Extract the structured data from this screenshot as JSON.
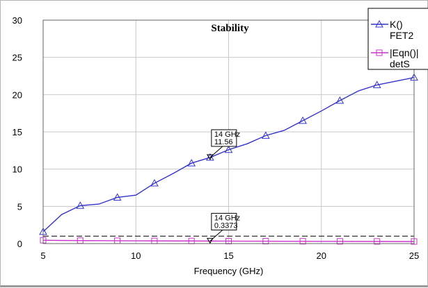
{
  "chart_data": {
    "type": "line",
    "title": "Stability",
    "xlabel": "Frequency (GHz)",
    "ylabel": "",
    "xlim": [
      5,
      25
    ],
    "ylim": [
      0,
      30
    ],
    "xticks": [
      5,
      10,
      15,
      20,
      25
    ],
    "yticks": [
      0,
      5,
      10,
      15,
      20,
      25,
      30
    ],
    "grid": true,
    "legend_position": "top-right",
    "series": [
      {
        "name": "K()",
        "sub": "FET2",
        "color": "#3333cc",
        "marker": "triangle",
        "x": [
          5,
          6,
          7,
          8,
          9,
          10,
          11,
          12,
          13,
          14,
          15,
          16,
          17,
          18,
          19,
          20,
          21,
          22,
          23,
          24,
          25
        ],
        "y": [
          1.6,
          3.9,
          5.1,
          5.3,
          6.2,
          6.5,
          8.1,
          9.4,
          10.8,
          11.56,
          12.6,
          13.4,
          14.5,
          15.2,
          16.5,
          17.8,
          19.2,
          20.5,
          21.3,
          21.8,
          22.3
        ],
        "marker_x": [
          5,
          7,
          9,
          11,
          13,
          14,
          15,
          17,
          19,
          21,
          23,
          25
        ]
      },
      {
        "name": "|Eqn()|",
        "sub": "detS",
        "color": "#cc33cc",
        "marker": "square",
        "x": [
          5,
          6,
          7,
          8,
          9,
          10,
          11,
          12,
          13,
          14,
          15,
          16,
          17,
          18,
          19,
          20,
          21,
          22,
          23,
          24,
          25
        ],
        "y": [
          0.45,
          0.42,
          0.4,
          0.39,
          0.38,
          0.37,
          0.36,
          0.35,
          0.35,
          0.3373,
          0.33,
          0.32,
          0.32,
          0.31,
          0.31,
          0.3,
          0.3,
          0.29,
          0.29,
          0.28,
          0.28
        ],
        "marker_x": [
          5,
          7,
          9,
          11,
          13,
          15,
          17,
          19,
          21,
          23,
          25
        ]
      }
    ],
    "reference_line": {
      "y": 1,
      "style": "dashed",
      "color": "#000000"
    },
    "markers": [
      {
        "x": 14,
        "y": 11.56,
        "line1": "14 GHz",
        "line2": "11.56"
      },
      {
        "x": 14,
        "y": 0.3373,
        "line1": "14 GHz",
        "line2": "0.3373"
      }
    ]
  }
}
